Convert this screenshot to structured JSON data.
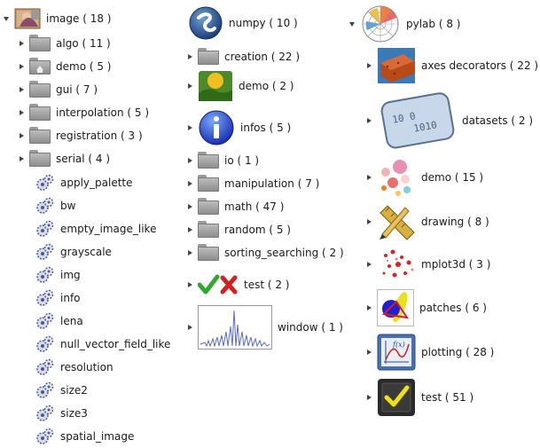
{
  "columns": [
    {
      "root": {
        "label": "image ( 18 )",
        "icon": "image-folder-icon"
      },
      "children": [
        {
          "label": "algo ( 11 )",
          "icon": "folder-icon",
          "expandable": true
        },
        {
          "label": "demo ( 5 )",
          "icon": "folder-home-icon",
          "expandable": true
        },
        {
          "label": "gui ( 7 )",
          "icon": "folder-icon",
          "expandable": true
        },
        {
          "label": "interpolation ( 5 )",
          "icon": "folder-icon",
          "expandable": true
        },
        {
          "label": "registration ( 3 )",
          "icon": "folder-icon",
          "expandable": true
        },
        {
          "label": "serial ( 4 )",
          "icon": "folder-icon",
          "expandable": true
        },
        {
          "label": "apply_palette",
          "icon": "gear-script-icon",
          "expandable": false
        },
        {
          "label": "bw",
          "icon": "gear-script-icon",
          "expandable": false
        },
        {
          "label": "empty_image_like",
          "icon": "gear-script-icon",
          "expandable": false
        },
        {
          "label": "grayscale",
          "icon": "gear-script-icon",
          "expandable": false
        },
        {
          "label": "img",
          "icon": "gear-script-icon",
          "expandable": false
        },
        {
          "label": "info",
          "icon": "gear-script-icon",
          "expandable": false
        },
        {
          "label": "lena",
          "icon": "gear-script-icon",
          "expandable": false
        },
        {
          "label": "null_vector_field_like",
          "icon": "gear-script-icon",
          "expandable": false
        },
        {
          "label": "resolution",
          "icon": "gear-script-icon",
          "expandable": false
        },
        {
          "label": "size2",
          "icon": "gear-script-icon",
          "expandable": false
        },
        {
          "label": "size3",
          "icon": "gear-script-icon",
          "expandable": false
        },
        {
          "label": "spatial_image",
          "icon": "gear-script-icon",
          "expandable": false
        }
      ]
    },
    {
      "root": {
        "label": "numpy ( 10 )",
        "icon": "numpy-logo-icon"
      },
      "children": [
        {
          "label": "creation ( 22 )",
          "icon": "folder-icon"
        },
        {
          "label": "demo ( 2 )",
          "icon": "demo-landscape-icon"
        },
        {
          "label": "infos ( 5 )",
          "icon": "info-icon"
        },
        {
          "label": "io ( 1 )",
          "icon": "folder-icon"
        },
        {
          "label": "manipulation ( 7 )",
          "icon": "folder-icon"
        },
        {
          "label": "math ( 47 )",
          "icon": "folder-icon"
        },
        {
          "label": "random ( 5 )",
          "icon": "folder-icon"
        },
        {
          "label": "sorting_searching ( 2 )",
          "icon": "folder-icon"
        },
        {
          "label": "test ( 2 )",
          "icon": "check-cross-icon"
        },
        {
          "label": "window ( 1 )",
          "icon": "window-plot-icon"
        }
      ]
    },
    {
      "root": {
        "label": "pylab ( 8 )",
        "icon": "polar-plot-icon"
      },
      "children": [
        {
          "label": "axes decorators ( 22 )",
          "icon": "brick-icon"
        },
        {
          "label": "datasets ( 2 )",
          "icon": "binary-data-icon"
        },
        {
          "label": "demo ( 15 )",
          "icon": "bubbles-icon"
        },
        {
          "label": "drawing ( 8 )",
          "icon": "pencil-ruler-icon"
        },
        {
          "label": "mplot3d ( 3 )",
          "icon": "scatter3d-icon"
        },
        {
          "label": "patches ( 6 )",
          "icon": "patches-icon"
        },
        {
          "label": "plotting ( 28 )",
          "icon": "function-plot-icon"
        },
        {
          "label": "test ( 51 )",
          "icon": "checkbox-icon"
        }
      ]
    }
  ]
}
